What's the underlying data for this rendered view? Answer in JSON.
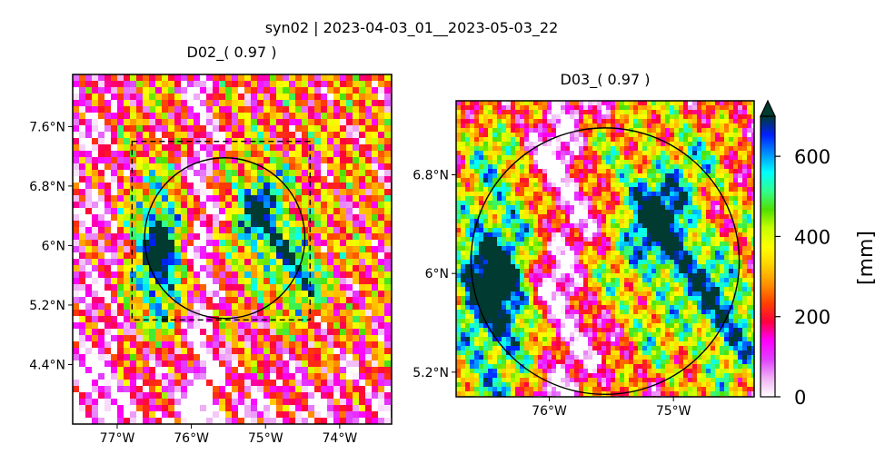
{
  "chart_data": {
    "type": "heatmap",
    "title": "syn02 | 2023-04-03_01__2023-05-03_22",
    "colorbar": {
      "label": "[mm]",
      "ticks": [
        0,
        200,
        400,
        600
      ],
      "vmin": 0,
      "vmax": 700,
      "extend": "max",
      "colormap": "gist_ncar_r",
      "colors": [
        "#ffffff",
        "#f0b0f5",
        "#e040ff",
        "#ff00ff",
        "#ff0040",
        "#ff4000",
        "#ff9000",
        "#ffd000",
        "#ffff00",
        "#c8ff00",
        "#50e000",
        "#30ff90",
        "#00ffff",
        "#0090ff",
        "#0020ff",
        "#003a30"
      ]
    },
    "panels": [
      {
        "title": "D02_( 0.97 )",
        "xticks": [
          "77°W",
          "76°W",
          "75°W",
          "74°W"
        ],
        "yticks": [
          "7.6°N",
          "6.8°N",
          "6°N",
          "5.2°N",
          "4.4°N"
        ],
        "xlim": [
          -77.6,
          -73.3
        ],
        "ylim": [
          3.6,
          8.3
        ],
        "inner_domain_box": {
          "lon": [
            -76.8,
            -74.4
          ],
          "lat": [
            5.0,
            7.4
          ]
        },
        "circle": {
          "center_lon": -75.55,
          "center_lat": 6.1,
          "radius_deg": 1.08
        }
      },
      {
        "title": "D03_( 0.97 )",
        "xticks": [
          "76°W",
          "75°W"
        ],
        "yticks": [
          "6.8°N",
          "6°N",
          "5.2°N"
        ],
        "xlim": [
          -76.75,
          -74.35
        ],
        "ylim": [
          5.0,
          7.4
        ],
        "circle": {
          "center_lon": -75.55,
          "center_lat": 6.1,
          "radius_deg": 1.08
        }
      }
    ]
  }
}
